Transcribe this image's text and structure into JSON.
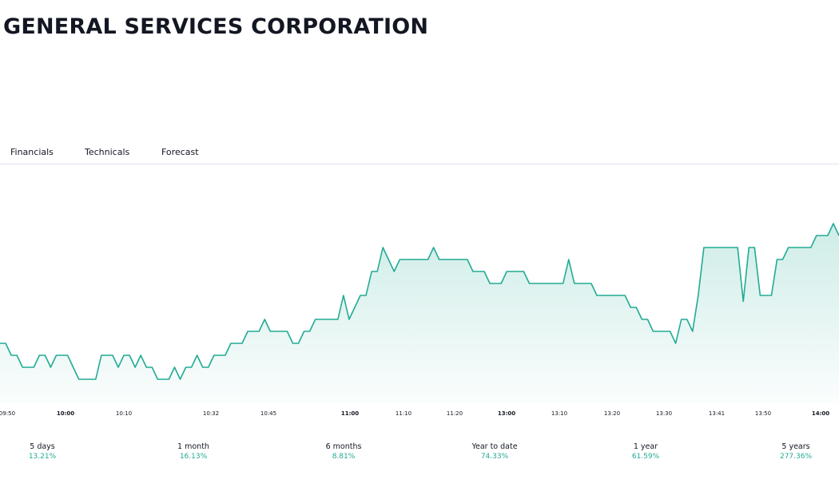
{
  "header": {
    "company_name": "GENERAL SERVICES CORPORATION"
  },
  "tabs": [
    {
      "label": "Financials"
    },
    {
      "label": "Technicals"
    },
    {
      "label": "Forecast"
    }
  ],
  "colors": {
    "accent": "#22ab94",
    "line": "#22ab94",
    "area_fill": "#22ab94"
  },
  "chart_data": {
    "type": "area",
    "x_ticks": [
      {
        "label": "09:50",
        "bold": false
      },
      {
        "label": "10:00",
        "bold": true
      },
      {
        "label": "10:10",
        "bold": false
      },
      {
        "label": "10:32",
        "bold": false
      },
      {
        "label": "10:45",
        "bold": false
      },
      {
        "label": "11:00",
        "bold": true
      },
      {
        "label": "11:10",
        "bold": false
      },
      {
        "label": "11:20",
        "bold": false
      },
      {
        "label": "13:00",
        "bold": true
      },
      {
        "label": "13:10",
        "bold": false
      },
      {
        "label": "13:20",
        "bold": false
      },
      {
        "label": "13:30",
        "bold": false
      },
      {
        "label": "13:41",
        "bold": false
      },
      {
        "label": "13:50",
        "bold": false
      },
      {
        "label": "14:00",
        "bold": true
      }
    ],
    "values": [
      10.3,
      10.3,
      10.1,
      10.1,
      9.9,
      9.9,
      9.9,
      10.1,
      10.1,
      9.9,
      10.1,
      10.1,
      10.1,
      9.9,
      9.7,
      9.7,
      9.7,
      9.7,
      10.1,
      10.1,
      10.1,
      9.9,
      10.1,
      10.1,
      9.9,
      10.1,
      9.9,
      9.9,
      9.7,
      9.7,
      9.7,
      9.9,
      9.7,
      9.9,
      9.9,
      10.1,
      9.9,
      9.9,
      10.1,
      10.1,
      10.1,
      10.3,
      10.3,
      10.3,
      10.5,
      10.5,
      10.5,
      10.7,
      10.5,
      10.5,
      10.5,
      10.5,
      10.3,
      10.3,
      10.5,
      10.5,
      10.7,
      10.7,
      10.7,
      10.7,
      10.7,
      11.1,
      10.7,
      10.9,
      11.1,
      11.1,
      11.5,
      11.5,
      11.9,
      11.7,
      11.5,
      11.7,
      11.7,
      11.7,
      11.7,
      11.7,
      11.7,
      11.9,
      11.7,
      11.7,
      11.7,
      11.7,
      11.7,
      11.7,
      11.5,
      11.5,
      11.5,
      11.3,
      11.3,
      11.3,
      11.5,
      11.5,
      11.5,
      11.5,
      11.3,
      11.3,
      11.3,
      11.3,
      11.3,
      11.3,
      11.3,
      11.7,
      11.3,
      11.3,
      11.3,
      11.3,
      11.1,
      11.1,
      11.1,
      11.1,
      11.1,
      11.1,
      10.9,
      10.9,
      10.7,
      10.7,
      10.5,
      10.5,
      10.5,
      10.5,
      10.3,
      10.7,
      10.7,
      10.5,
      11.1,
      11.9,
      11.9,
      11.9,
      11.9,
      11.9,
      11.9,
      11.9,
      11.0,
      11.9,
      11.9,
      11.1,
      11.1,
      11.1,
      11.7,
      11.7,
      11.9,
      11.9,
      11.9,
      11.9,
      11.9,
      12.1,
      12.1,
      12.1,
      12.3,
      12.1
    ],
    "ylim": [
      9.3,
      13.3
    ],
    "grid": false,
    "legend": "none"
  },
  "performance": [
    {
      "label": "5 days",
      "value": "13.21%"
    },
    {
      "label": "1 month",
      "value": "16.13%"
    },
    {
      "label": "6 months",
      "value": "8.81%"
    },
    {
      "label": "Year to date",
      "value": "74.33%"
    },
    {
      "label": "1 year",
      "value": "61.59%"
    },
    {
      "label": "5 years",
      "value": "277.36%"
    }
  ]
}
